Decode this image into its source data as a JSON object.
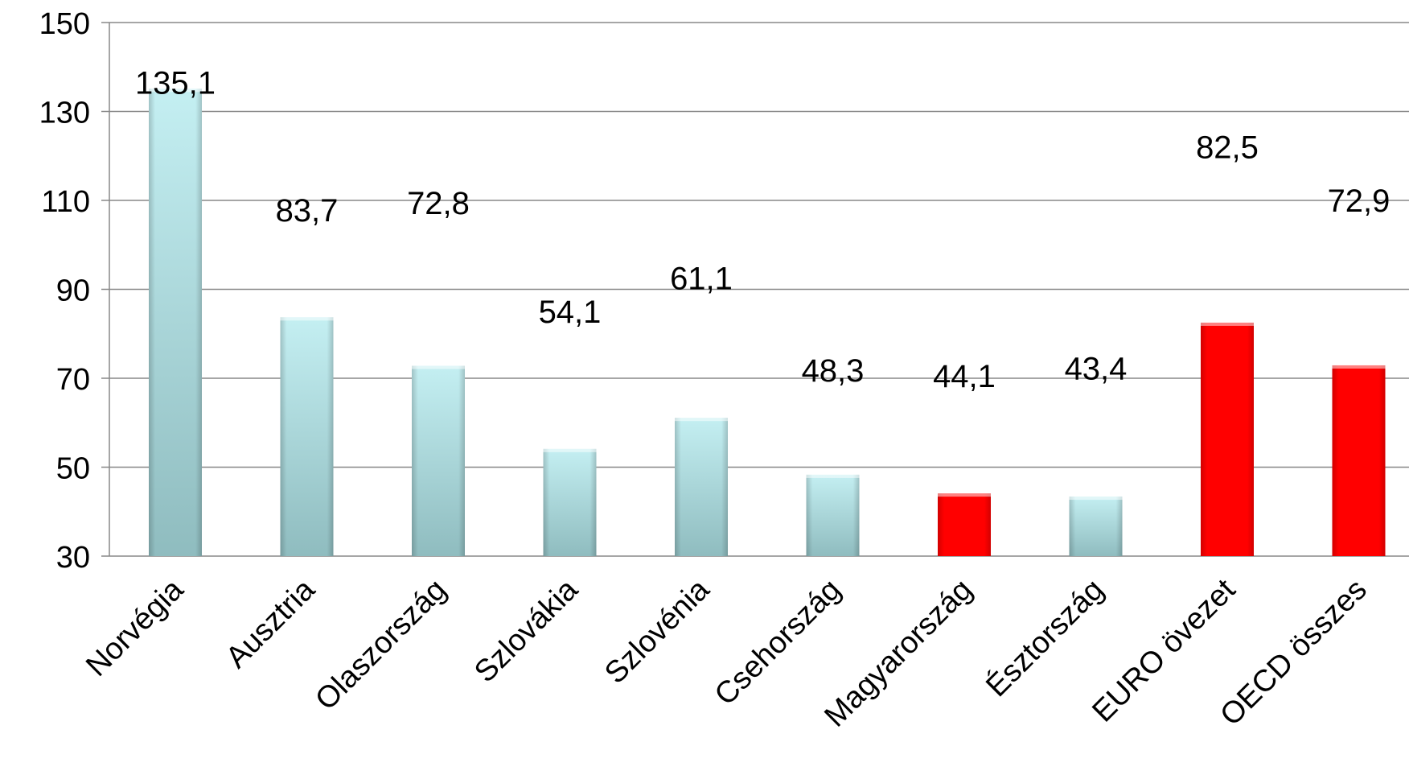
{
  "chart_data": {
    "type": "bar",
    "title": "",
    "xlabel": "",
    "ylabel": "",
    "categories": [
      "Norvégia",
      "Ausztria",
      "Olaszország",
      "Szlovákia",
      "Szlovénia",
      "Csehország",
      "Magyarország",
      "Észtország",
      "EURO övezet",
      "OECD összes"
    ],
    "values": [
      135.1,
      83.7,
      72.8,
      54.1,
      61.1,
      48.3,
      44.1,
      43.4,
      82.5,
      72.9
    ],
    "value_labels": [
      "135,1",
      "83,7",
      "72,8",
      "54,1",
      "61,1",
      "48,3",
      "44,1",
      "43,4",
      "82,5",
      "72,9"
    ],
    "ylim": [
      30,
      150
    ],
    "yticks": [
      30,
      50,
      70,
      90,
      110,
      130,
      150
    ],
    "ytick_labels": [
      "30",
      "50",
      "70",
      "90",
      "110",
      "130",
      "150"
    ],
    "grid": true,
    "legend": "none",
    "colors": {
      "default_bar": "#a8d8dc",
      "highlight_bar": "#ff0000"
    },
    "highlighted_categories": [
      "Magyarország",
      "EURO övezet",
      "OECD összes"
    ]
  }
}
